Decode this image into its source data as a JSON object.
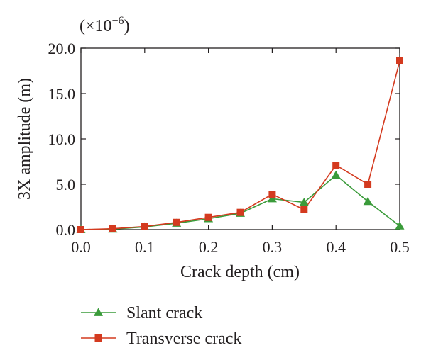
{
  "chart_data": {
    "type": "line",
    "title": "",
    "xlabel": "Crack depth (cm)",
    "ylabel": "3X amplitude (m)",
    "y_multiplier_label": "(×10",
    "y_multiplier_exp": "−6",
    "y_multiplier_close": ")",
    "xlim": [
      0.0,
      0.5
    ],
    "ylim": [
      0.0,
      20.0
    ],
    "x_ticks": [
      0.0,
      0.1,
      0.2,
      0.3,
      0.4,
      0.5
    ],
    "x_tick_labels": [
      "0.0",
      "0.1",
      "0.2",
      "0.3",
      "0.4",
      "0.5"
    ],
    "y_ticks": [
      0.0,
      5.0,
      10.0,
      15.0,
      20.0
    ],
    "y_tick_labels": [
      "0.0",
      "5.0",
      "10.0",
      "15.0",
      "20.0"
    ],
    "grid": false,
    "legend_position": "bottom",
    "x": [
      0.0,
      0.05,
      0.1,
      0.15,
      0.2,
      0.25,
      0.3,
      0.35,
      0.4,
      0.45,
      0.5
    ],
    "series": [
      {
        "name": "Slant crack",
        "color": "#3a9b3a",
        "marker": "triangle",
        "values": [
          0.0,
          0.05,
          0.3,
          0.7,
          1.2,
          1.8,
          3.4,
          3.0,
          6.0,
          3.1,
          0.4
        ]
      },
      {
        "name": "Transverse crack",
        "color": "#d43a1f",
        "marker": "square",
        "values": [
          0.0,
          0.1,
          0.35,
          0.8,
          1.35,
          1.9,
          3.9,
          2.2,
          7.1,
          5.0,
          18.6
        ]
      }
    ]
  }
}
